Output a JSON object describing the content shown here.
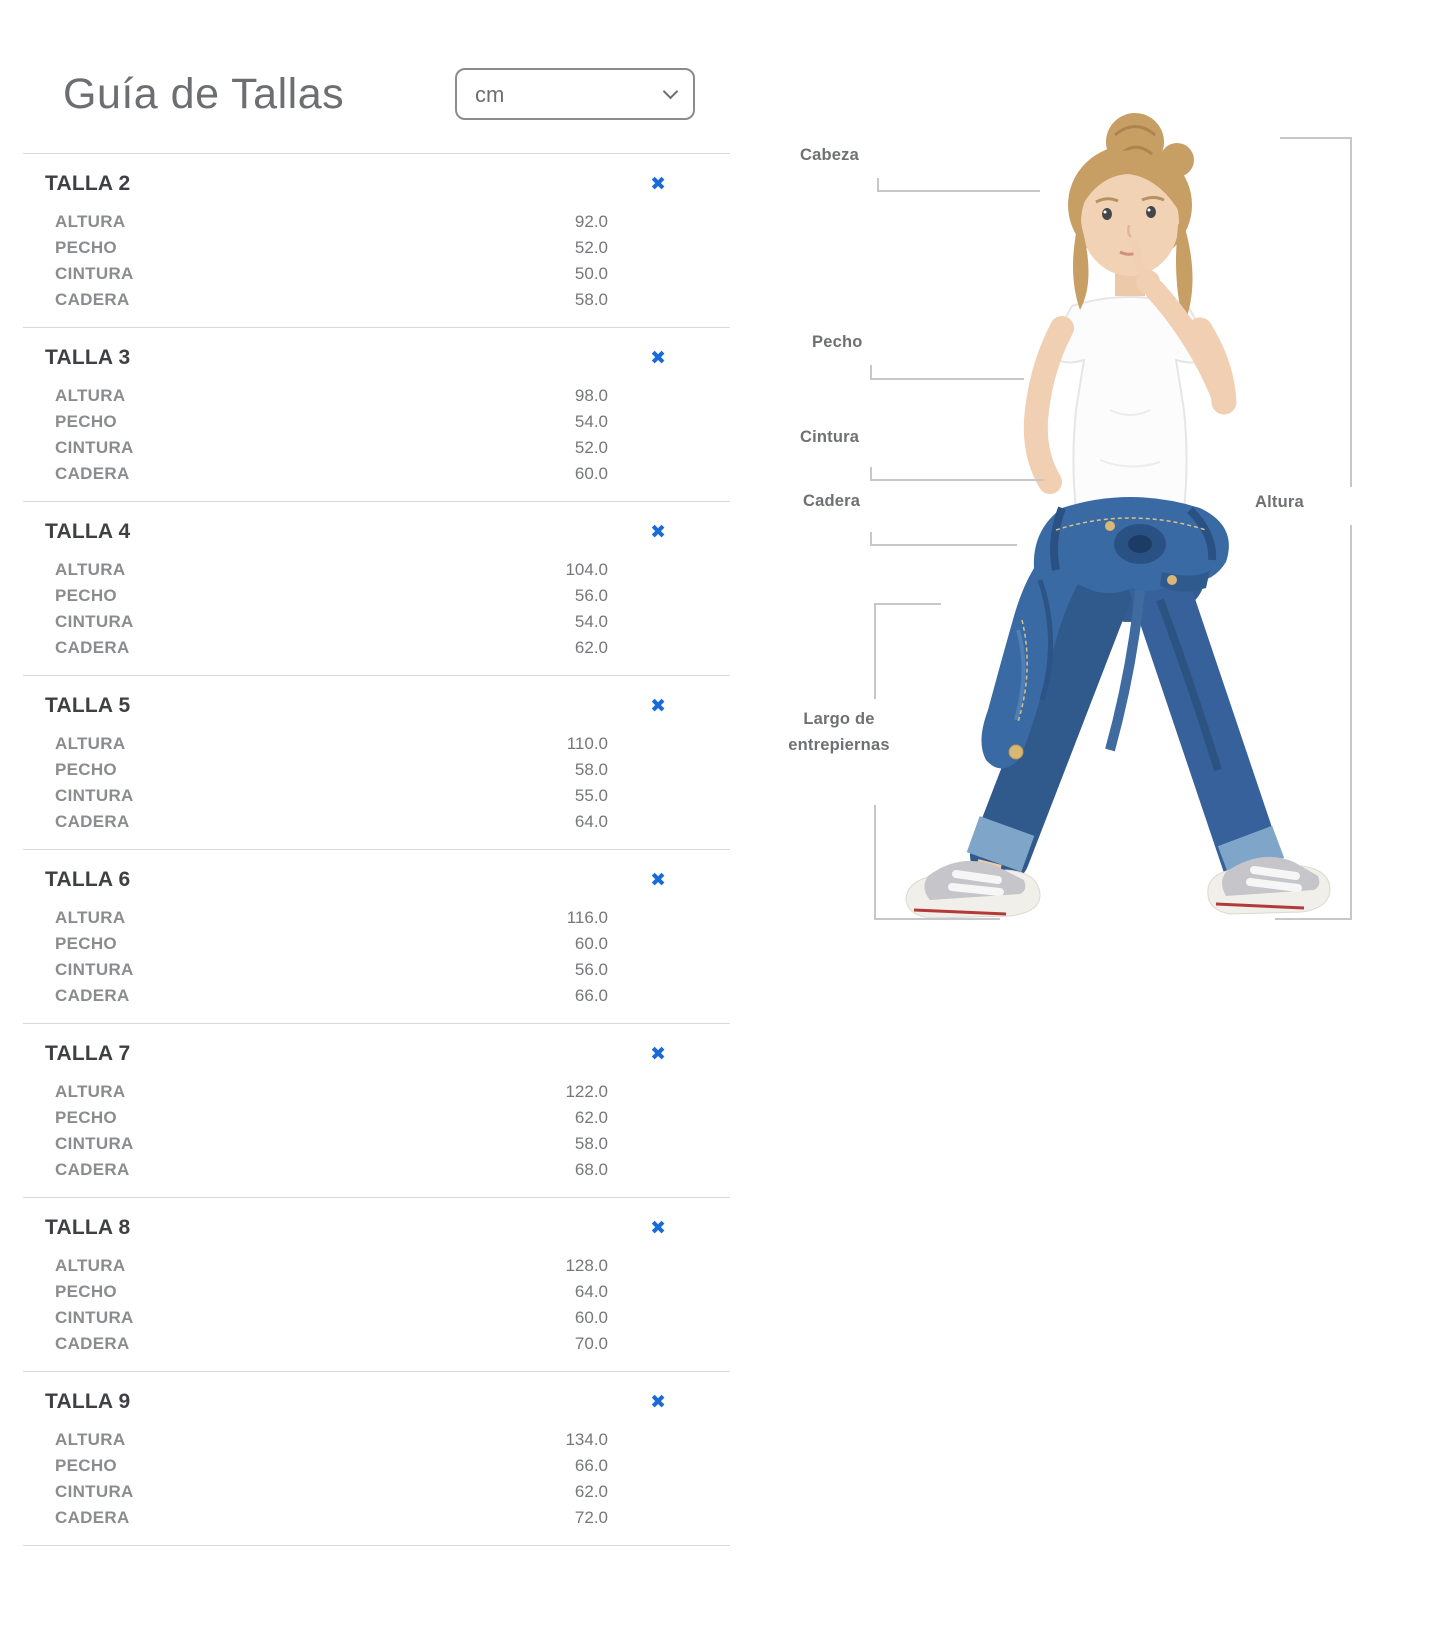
{
  "header": {
    "title": "Guía de Tallas",
    "unit_select": {
      "value": "cm",
      "options": [
        "cm"
      ]
    }
  },
  "ui": {
    "close_icon": "✖"
  },
  "sizes": [
    {
      "name": "TALLA 2",
      "measurements": [
        {
          "label": "ALTURA",
          "value": "92.0"
        },
        {
          "label": "PECHO",
          "value": "52.0"
        },
        {
          "label": "CINTURA",
          "value": "50.0"
        },
        {
          "label": "CADERA",
          "value": "58.0"
        }
      ]
    },
    {
      "name": "TALLA 3",
      "measurements": [
        {
          "label": "ALTURA",
          "value": "98.0"
        },
        {
          "label": "PECHO",
          "value": "54.0"
        },
        {
          "label": "CINTURA",
          "value": "52.0"
        },
        {
          "label": "CADERA",
          "value": "60.0"
        }
      ]
    },
    {
      "name": "TALLA 4",
      "measurements": [
        {
          "label": "ALTURA",
          "value": "104.0"
        },
        {
          "label": "PECHO",
          "value": "56.0"
        },
        {
          "label": "CINTURA",
          "value": "54.0"
        },
        {
          "label": "CADERA",
          "value": "62.0"
        }
      ]
    },
    {
      "name": "TALLA 5",
      "measurements": [
        {
          "label": "ALTURA",
          "value": "110.0"
        },
        {
          "label": "PECHO",
          "value": "58.0"
        },
        {
          "label": "CINTURA",
          "value": "55.0"
        },
        {
          "label": "CADERA",
          "value": "64.0"
        }
      ]
    },
    {
      "name": "TALLA 6",
      "measurements": [
        {
          "label": "ALTURA",
          "value": "116.0"
        },
        {
          "label": "PECHO",
          "value": "60.0"
        },
        {
          "label": "CINTURA",
          "value": "56.0"
        },
        {
          "label": "CADERA",
          "value": "66.0"
        }
      ]
    },
    {
      "name": "TALLA 7",
      "measurements": [
        {
          "label": "ALTURA",
          "value": "122.0"
        },
        {
          "label": "PECHO",
          "value": "62.0"
        },
        {
          "label": "CINTURA",
          "value": "58.0"
        },
        {
          "label": "CADERA",
          "value": "68.0"
        }
      ]
    },
    {
      "name": "TALLA 8",
      "measurements": [
        {
          "label": "ALTURA",
          "value": "128.0"
        },
        {
          "label": "PECHO",
          "value": "64.0"
        },
        {
          "label": "CINTURA",
          "value": "60.0"
        },
        {
          "label": "CADERA",
          "value": "70.0"
        }
      ]
    },
    {
      "name": "TALLA 9",
      "measurements": [
        {
          "label": "ALTURA",
          "value": "134.0"
        },
        {
          "label": "PECHO",
          "value": "66.0"
        },
        {
          "label": "CINTURA",
          "value": "62.0"
        },
        {
          "label": "CADERA",
          "value": "72.0"
        }
      ]
    }
  ],
  "figure": {
    "cabeza": "Cabeza",
    "pecho": "Pecho",
    "cintura": "Cintura",
    "cadera": "Cadera",
    "largo_line1": "Largo de",
    "largo_line2": "entrepiernas",
    "altura": "Altura"
  },
  "colors": {
    "accent_blue": "#1a6bd8",
    "heading_text": "#3f4043",
    "label_gray": "#8b8c8f",
    "value_gray": "#76777a",
    "title_gray": "#6d6e71",
    "divider": "#d9dadb",
    "bracket_line": "#c6c7c9"
  }
}
